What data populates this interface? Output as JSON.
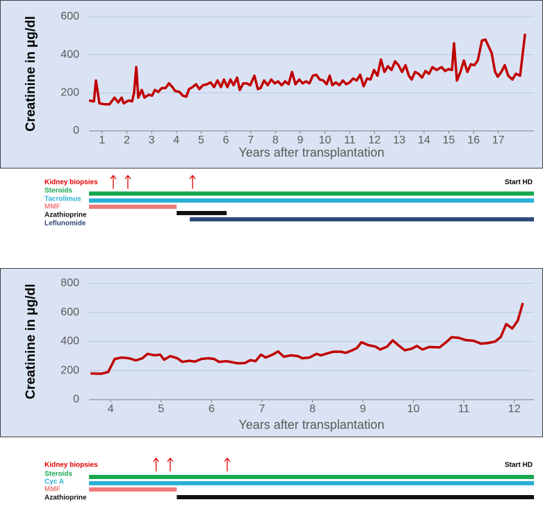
{
  "chart_data": [
    {
      "type": "line",
      "ylabel": "Creatinine in μg/dl",
      "xlabel": "Years after transplantation",
      "xlim": [
        0.47,
        18.44
      ],
      "xticks": [
        1,
        2,
        3,
        4,
        5,
        6,
        7,
        8,
        9,
        10,
        11,
        12,
        13,
        14,
        15,
        16,
        17
      ],
      "ylim": [
        0,
        600
      ],
      "yticks": [
        0,
        200,
        400,
        600
      ],
      "grid": true,
      "series": [
        {
          "color": "#c00000",
          "x": [
            0.47,
            0.67,
            0.75,
            0.89,
            1.08,
            1.3,
            1.5,
            1.65,
            1.79,
            1.87,
            2.07,
            2.21,
            2.29,
            2.38,
            2.46,
            2.6,
            2.71,
            2.88,
            3.02,
            3.13,
            3.27,
            3.41,
            3.56,
            3.7,
            3.84,
            3.95,
            4.12,
            4.26,
            4.4,
            4.51,
            4.65,
            4.79,
            4.93,
            5.07,
            5.24,
            5.38,
            5.52,
            5.66,
            5.8,
            5.92,
            6.06,
            6.18,
            6.31,
            6.45,
            6.56,
            6.7,
            6.84,
            6.98,
            7.15,
            7.29,
            7.4,
            7.54,
            7.69,
            7.83,
            7.97,
            8.11,
            8.25,
            8.39,
            8.53,
            8.67,
            8.81,
            8.96,
            9.1,
            9.23,
            9.37,
            9.51,
            9.65,
            9.79,
            9.93,
            10.07,
            10.19,
            10.3,
            10.44,
            10.58,
            10.72,
            10.86,
            11.0,
            11.14,
            11.28,
            11.42,
            11.56,
            11.7,
            11.84,
            11.98,
            12.12,
            12.26,
            12.4,
            12.54,
            12.69,
            12.83,
            12.97,
            13.11,
            13.25,
            13.39,
            13.5,
            13.64,
            13.78,
            13.92,
            14.06,
            14.2,
            14.34,
            14.51,
            14.71,
            14.85,
            14.99,
            15.13,
            15.21,
            15.33,
            15.47,
            15.61,
            15.75,
            15.89,
            16.03,
            16.17,
            16.34,
            16.48,
            16.62,
            16.73,
            16.87,
            16.98,
            17.12,
            17.26,
            17.4,
            17.57,
            17.71,
            17.88,
            18.08
          ],
          "values": [
            160,
            155,
            265,
            145,
            140,
            140,
            175,
            150,
            175,
            145,
            160,
            155,
            200,
            335,
            175,
            215,
            175,
            190,
            185,
            215,
            205,
            225,
            225,
            250,
            230,
            210,
            205,
            185,
            180,
            220,
            230,
            245,
            220,
            240,
            245,
            255,
            230,
            265,
            230,
            270,
            230,
            270,
            240,
            280,
            215,
            250,
            250,
            240,
            290,
            220,
            225,
            265,
            240,
            270,
            250,
            260,
            240,
            260,
            245,
            310,
            245,
            270,
            250,
            260,
            250,
            290,
            295,
            270,
            265,
            245,
            290,
            240,
            255,
            240,
            265,
            245,
            255,
            275,
            265,
            295,
            235,
            275,
            270,
            320,
            290,
            375,
            310,
            340,
            320,
            365,
            345,
            310,
            345,
            290,
            270,
            310,
            300,
            280,
            315,
            300,
            335,
            320,
            335,
            315,
            325,
            320,
            460,
            265,
            310,
            370,
            310,
            350,
            345,
            370,
            475,
            480,
            440,
            410,
            310,
            285,
            310,
            345,
            290,
            270,
            300,
            290,
            510
          ]
        }
      ],
      "timeline": {
        "events_label": "Kidney biopsies",
        "events_color": "#e00000",
        "events": [
          1.45,
          2.04,
          4.65
        ],
        "end_label": "Start HD",
        "bars": [
          {
            "name": "Steroids",
            "color": "#1aa850",
            "start": 0.47,
            "end": 18.44
          },
          {
            "name": "Tacrolimus",
            "color": "#2ab0d6",
            "start": 0.47,
            "end": 18.44
          },
          {
            "name": "MMF",
            "color": "#f07b7b",
            "start": 0.47,
            "end": 4.01
          },
          {
            "name": "Azathioprine",
            "color": "#111111",
            "start": 4.01,
            "end": 6.03
          },
          {
            "name": "Leflunomide",
            "color": "#2e4a7a",
            "start": 4.54,
            "end": 18.44
          }
        ]
      }
    },
    {
      "type": "line",
      "ylabel": "Creatinine in μg/dl",
      "xlabel": "Years after transplantation",
      "xlim": [
        3.57,
        12.39
      ],
      "xticks": [
        4,
        5,
        6,
        7,
        8,
        9,
        10,
        11,
        12
      ],
      "ylim": [
        0,
        800
      ],
      "yticks": [
        0,
        200,
        400,
        600,
        800
      ],
      "grid": true,
      "series": [
        {
          "color": "#c00000",
          "x": [
            3.6,
            3.81,
            3.95,
            4.08,
            4.22,
            4.36,
            4.5,
            4.63,
            4.73,
            4.87,
            4.98,
            5.06,
            5.18,
            5.32,
            5.42,
            5.56,
            5.67,
            5.8,
            5.94,
            6.05,
            6.15,
            6.29,
            6.4,
            6.52,
            6.66,
            6.77,
            6.87,
            6.98,
            7.07,
            7.21,
            7.32,
            7.43,
            7.57,
            7.71,
            7.8,
            7.94,
            8.08,
            8.17,
            8.31,
            8.42,
            8.56,
            8.66,
            8.79,
            8.88,
            8.97,
            9.11,
            9.25,
            9.34,
            9.48,
            9.59,
            9.7,
            9.83,
            9.96,
            10.07,
            10.18,
            10.31,
            10.52,
            10.65,
            10.76,
            10.9,
            11.04,
            11.2,
            11.34,
            11.48,
            11.62,
            11.73,
            11.84,
            11.96,
            12.07,
            12.17
          ],
          "values": [
            180,
            178,
            190,
            280,
            290,
            285,
            270,
            285,
            315,
            305,
            310,
            275,
            300,
            285,
            260,
            268,
            262,
            280,
            285,
            280,
            260,
            265,
            258,
            250,
            252,
            272,
            265,
            310,
            290,
            310,
            332,
            295,
            305,
            300,
            285,
            290,
            315,
            305,
            320,
            330,
            330,
            322,
            340,
            355,
            395,
            375,
            365,
            345,
            365,
            408,
            375,
            340,
            350,
            370,
            345,
            362,
            360,
            395,
            430,
            425,
            410,
            405,
            385,
            390,
            400,
            430,
            520,
            490,
            545,
            665
          ]
        }
      ],
      "timeline": {
        "events_label": "Kidney biopsies",
        "events_color": "#e00000",
        "events": [
          4.9,
          5.18,
          6.31
        ],
        "end_label": "Start HD",
        "bars": [
          {
            "name": "Steroids",
            "color": "#1aa850",
            "start": 3.57,
            "end": 12.39
          },
          {
            "name": "Cyc A",
            "color": "#2ab0d6",
            "start": 3.57,
            "end": 12.39
          },
          {
            "name": "MMF",
            "color": "#f07b7b",
            "start": 3.57,
            "end": 5.31
          },
          {
            "name": "Azathioprine",
            "color": "#111111",
            "start": 5.31,
            "end": 12.39
          }
        ]
      }
    }
  ]
}
